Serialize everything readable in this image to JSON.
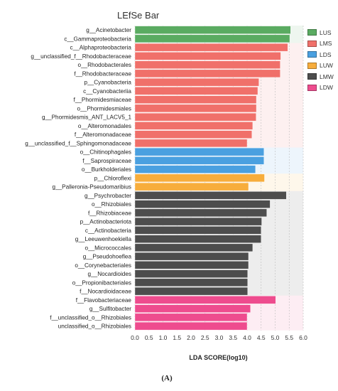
{
  "chart_data": {
    "type": "bar",
    "orientation": "horizontal",
    "title": "LEfSe Bar",
    "xlabel": "LDA SCORE(log10)",
    "xlim": [
      0,
      6
    ],
    "xticks": [
      "0.0",
      "0.5",
      "1.0",
      "1.5",
      "2.0",
      "2.5",
      "3.0",
      "3.5",
      "4.0",
      "4.5",
      "5.0",
      "5.5",
      "6.0"
    ],
    "grid": "vertical dashed",
    "legend_position": "right",
    "panel_label": "(A)",
    "groups": [
      {
        "name": "LUS",
        "color": "#5aab61"
      },
      {
        "name": "LMS",
        "color": "#f0706a"
      },
      {
        "name": "LDS",
        "color": "#4aa0e0"
      },
      {
        "name": "LUW",
        "color": "#f7ad3c"
      },
      {
        "name": "LMW",
        "color": "#4d4d4d"
      },
      {
        "name": "LDW",
        "color": "#ee4c8e"
      }
    ],
    "bars": [
      {
        "label": "g__Acinetobacter",
        "value": 5.55,
        "group": "LUS"
      },
      {
        "label": "c__Gammaproteobacteria",
        "value": 5.52,
        "group": "LUS"
      },
      {
        "label": "c__Alphaproteobacteria",
        "value": 5.45,
        "group": "LMS"
      },
      {
        "label": "g__unclassified_f__Rhodobacteraceae",
        "value": 5.2,
        "group": "LMS"
      },
      {
        "label": "o__Rhodobacterales",
        "value": 5.18,
        "group": "LMS"
      },
      {
        "label": "f__Rhodobacteraceae",
        "value": 5.18,
        "group": "LMS"
      },
      {
        "label": "p__Cyanobacteria",
        "value": 4.42,
        "group": "LMS"
      },
      {
        "label": "c__Cyanobacteriia",
        "value": 4.38,
        "group": "LMS"
      },
      {
        "label": "f__Phormidesmiaceae",
        "value": 4.33,
        "group": "LMS"
      },
      {
        "label": "o__Phormidesmiales",
        "value": 4.33,
        "group": "LMS"
      },
      {
        "label": "g__Phormidesmis_ANT_LACV5_1",
        "value": 4.32,
        "group": "LMS"
      },
      {
        "label": "o__Alteromonadales",
        "value": 4.2,
        "group": "LMS"
      },
      {
        "label": "f__Alteromonadaceae",
        "value": 4.17,
        "group": "LMS"
      },
      {
        "label": "g__unclassified_f__Sphingomonadaceae",
        "value": 4.0,
        "group": "LMS"
      },
      {
        "label": "o__Chitinophagales",
        "value": 4.6,
        "group": "LDS"
      },
      {
        "label": "f__Saprospiraceae",
        "value": 4.6,
        "group": "LDS"
      },
      {
        "label": "o__Burkholderiales",
        "value": 4.3,
        "group": "LDS"
      },
      {
        "label": "p__Chloroflexi",
        "value": 4.62,
        "group": "LUW"
      },
      {
        "label": "g__Palleronia-Pseudomaribius",
        "value": 4.05,
        "group": "LUW"
      },
      {
        "label": "g__Psychrobacter",
        "value": 5.4,
        "group": "LMW"
      },
      {
        "label": "o__Rhizobiales",
        "value": 4.82,
        "group": "LMW"
      },
      {
        "label": "f__Rhizobiaceae",
        "value": 4.7,
        "group": "LMW"
      },
      {
        "label": "p__Actinobacteriota",
        "value": 4.52,
        "group": "LMW"
      },
      {
        "label": "c__Actinobacteria",
        "value": 4.5,
        "group": "LMW"
      },
      {
        "label": "g__Leeuwenhoekiella",
        "value": 4.5,
        "group": "LMW"
      },
      {
        "label": "o__Micrococcales",
        "value": 4.2,
        "group": "LMW"
      },
      {
        "label": "g__Pseudohoeflea",
        "value": 4.05,
        "group": "LMW"
      },
      {
        "label": "o__Corynebacteriales",
        "value": 4.05,
        "group": "LMW"
      },
      {
        "label": "g__Nocardioides",
        "value": 4.02,
        "group": "LMW"
      },
      {
        "label": "o__Propionibacteriales",
        "value": 4.02,
        "group": "LMW"
      },
      {
        "label": "f__Nocardioidaceae",
        "value": 4.02,
        "group": "LMW"
      },
      {
        "label": "f__Flavobacteriaceae",
        "value": 5.02,
        "group": "LDW"
      },
      {
        "label": "g__Sulfitobacter",
        "value": 4.12,
        "group": "LDW"
      },
      {
        "label": "f__unclassified_o__Rhizobiales",
        "value": 4.0,
        "group": "LDW"
      },
      {
        "label": "unclassified_o__Rhizobiales",
        "value": 4.0,
        "group": "LDW"
      }
    ]
  }
}
